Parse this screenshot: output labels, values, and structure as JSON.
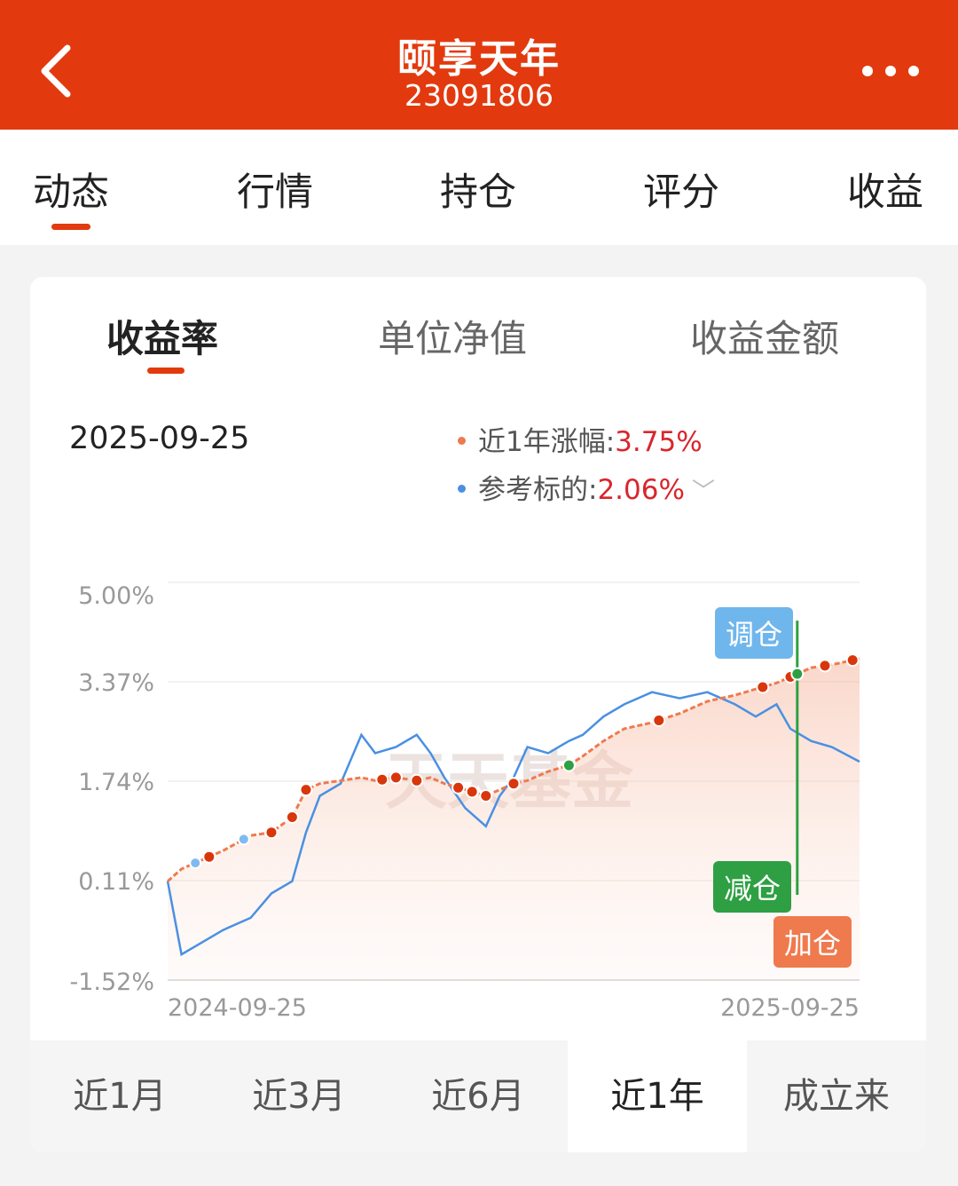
{
  "header": {
    "title": "颐享天年",
    "fund_code": "23091806",
    "back_icon": "chevron-left-icon",
    "more_icon": "more-dots-icon"
  },
  "tabs": [
    {
      "label": "动态",
      "active": true
    },
    {
      "label": "行情",
      "active": false
    },
    {
      "label": "持仓",
      "active": false
    },
    {
      "label": "评分",
      "active": false
    },
    {
      "label": "收益",
      "active": false
    }
  ],
  "chart_tabs": [
    {
      "label": "收益率",
      "active": true
    },
    {
      "label": "单位净值",
      "active": false
    },
    {
      "label": "收益金额",
      "active": false
    }
  ],
  "summary": {
    "date": "2025-09-25",
    "fund": {
      "label": "近1年涨幅:",
      "value": "3.75%"
    },
    "benchmark": {
      "label": "参考标的:",
      "value": "2.06%"
    }
  },
  "watermark": "天天基金",
  "markers": {
    "adjust": "调仓",
    "reduce": "减仓",
    "add": "加仓"
  },
  "periods": [
    {
      "label": "近1月",
      "active": false
    },
    {
      "label": "近3月",
      "active": false
    },
    {
      "label": "近6月",
      "active": false
    },
    {
      "label": "近1年",
      "active": true
    },
    {
      "label": "成立来",
      "active": false
    }
  ],
  "colors": {
    "brand": "#e23a0e",
    "fund_line": "#ef7a4e",
    "benchmark_line": "#4a90e2",
    "positive": "#d8262c",
    "buy_dot": "#d9360c",
    "sell_dot": "#2ea043",
    "adjust_badge": "#6fb6ec"
  },
  "chart_data": {
    "type": "line",
    "y_ticks": [
      "5.00%",
      "3.37%",
      "1.74%",
      "0.11%",
      "-1.52%"
    ],
    "ylim": [
      -1.52,
      5.0
    ],
    "x_tick_labels": [
      "2024-09-25",
      "2025-09-25"
    ],
    "x_progress": [
      0,
      0.02,
      0.05,
      0.08,
      0.12,
      0.15,
      0.18,
      0.2,
      0.22,
      0.25,
      0.28,
      0.3,
      0.33,
      0.36,
      0.38,
      0.4,
      0.43,
      0.46,
      0.48,
      0.5,
      0.52,
      0.55,
      0.58,
      0.6,
      0.63,
      0.66,
      0.7,
      0.74,
      0.78,
      0.82,
      0.85,
      0.88,
      0.9,
      0.93,
      0.96,
      1.0
    ],
    "series": [
      {
        "name": "近1年涨幅",
        "values": [
          0.1,
          0.3,
          0.45,
          0.6,
          0.85,
          0.9,
          1.15,
          1.6,
          1.7,
          1.75,
          1.8,
          1.75,
          1.8,
          1.75,
          1.8,
          1.7,
          1.6,
          1.5,
          1.6,
          1.7,
          1.75,
          1.9,
          2.0,
          2.15,
          2.4,
          2.6,
          2.7,
          2.85,
          3.05,
          3.15,
          3.25,
          3.35,
          3.45,
          3.6,
          3.65,
          3.75
        ]
      },
      {
        "name": "参考标的",
        "values": [
          0.1,
          -1.1,
          -0.9,
          -0.7,
          -0.5,
          -0.1,
          0.1,
          0.9,
          1.5,
          1.7,
          2.5,
          2.2,
          2.3,
          2.5,
          2.2,
          1.8,
          1.3,
          1.0,
          1.5,
          1.8,
          2.3,
          2.2,
          2.4,
          2.5,
          2.8,
          3.0,
          3.2,
          3.1,
          3.2,
          3.0,
          2.8,
          3.0,
          2.6,
          2.4,
          2.3,
          2.06
        ]
      }
    ],
    "buy_points": [
      0.06,
      0.15,
      0.18,
      0.2,
      0.31,
      0.33,
      0.36,
      0.42,
      0.44,
      0.46,
      0.5,
      0.71,
      0.86,
      0.9,
      0.95,
      0.99
    ],
    "sell_points": [
      0.58,
      0.91
    ],
    "bench_points": [
      0.04,
      0.11
    ],
    "grid": true,
    "legend": "top-right"
  }
}
